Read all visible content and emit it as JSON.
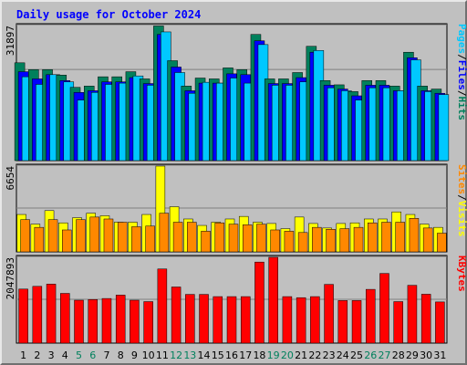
{
  "title": "Daily usage for October 2024",
  "colors": {
    "hits": "#00805c",
    "files": "#0000ff",
    "pages": "#00c8ff",
    "visits": "#ffff00",
    "sites": "#ff8800",
    "kbytes": "#ff0000",
    "weekend_label": "#00805c",
    "title": "#0000ff"
  },
  "chart_data": [
    {
      "type": "bar",
      "panel": "top",
      "categories": [
        "1",
        "2",
        "3",
        "4",
        "5",
        "6",
        "7",
        "8",
        "9",
        "10",
        "11",
        "12",
        "13",
        "14",
        "15",
        "16",
        "17",
        "18",
        "19",
        "20",
        "21",
        "22",
        "23",
        "24",
        "25",
        "26",
        "27",
        "28",
        "29",
        "30",
        "31"
      ],
      "y_label": "31897",
      "ylim": [
        0,
        31897
      ],
      "legend": [
        {
          "label": "Pages",
          "color": "#00c8ff"
        },
        {
          "label": "/",
          "color": "#000000"
        },
        {
          "label": "Files",
          "color": "#0000ff"
        },
        {
          "label": "/",
          "color": "#000000"
        },
        {
          "label": "Hits",
          "color": "#00805c"
        }
      ],
      "series": [
        {
          "name": "Hits",
          "color": "#00805c",
          "values": [
            23100,
            21500,
            21500,
            20200,
            17300,
            17600,
            19800,
            19800,
            21000,
            19300,
            31800,
            23600,
            17600,
            19500,
            19300,
            21900,
            21500,
            29800,
            19300,
            19300,
            20800,
            27000,
            18900,
            17900,
            16300,
            18900,
            18900,
            17600,
            25600,
            17600,
            16900
          ]
        },
        {
          "name": "Files",
          "color": "#0000ff",
          "values": [
            21000,
            19300,
            20300,
            18900,
            16100,
            16500,
            18600,
            18600,
            19600,
            18200,
            29800,
            22100,
            16500,
            18300,
            18300,
            20500,
            20300,
            28300,
            18200,
            18200,
            19600,
            25600,
            17800,
            16900,
            15300,
            17800,
            17800,
            16500,
            24300,
            16500,
            15900
          ]
        },
        {
          "name": "Pages",
          "color": "#00c8ff",
          "values": [
            19800,
            18000,
            20300,
            18600,
            14300,
            16100,
            18000,
            18300,
            20000,
            17800,
            30400,
            20800,
            15900,
            18500,
            18300,
            19500,
            18300,
            27400,
            17800,
            17800,
            18600,
            26000,
            17200,
            16500,
            14300,
            17200,
            17200,
            16500,
            23800,
            16300,
            15600
          ]
        }
      ]
    },
    {
      "type": "bar",
      "panel": "middle",
      "categories": [
        "1",
        "2",
        "3",
        "4",
        "5",
        "6",
        "7",
        "8",
        "9",
        "10",
        "11",
        "12",
        "13",
        "14",
        "15",
        "16",
        "17",
        "18",
        "19",
        "20",
        "21",
        "22",
        "23",
        "24",
        "25",
        "26",
        "27",
        "28",
        "29",
        "30",
        "31"
      ],
      "y_label": "6654",
      "ylim": [
        0,
        6654
      ],
      "legend": [
        {
          "label": "Sites",
          "color": "#ff8800"
        },
        {
          "label": "/",
          "color": "#000000"
        },
        {
          "label": "Visits",
          "color": "#ffff00"
        }
      ],
      "series": [
        {
          "name": "Visits",
          "color": "#ffff00",
          "values": [
            2900,
            2150,
            3200,
            2250,
            2650,
            3000,
            2800,
            2300,
            2300,
            2900,
            6654,
            3500,
            2550,
            2050,
            2300,
            2550,
            2750,
            2300,
            2200,
            1800,
            2700,
            2200,
            1850,
            2200,
            2250,
            2550,
            2550,
            3100,
            2900,
            2150,
            1900
          ]
        },
        {
          "name": "Sites",
          "color": "#ff8800",
          "values": [
            2500,
            1900,
            2500,
            1700,
            2500,
            2700,
            2550,
            2300,
            1950,
            2000,
            3000,
            2300,
            2300,
            1600,
            2250,
            2150,
            2100,
            2150,
            1700,
            1600,
            1500,
            1900,
            1750,
            1800,
            1900,
            2250,
            2300,
            2300,
            2600,
            1850,
            1450
          ]
        }
      ]
    },
    {
      "type": "bar",
      "panel": "bottom",
      "categories": [
        "1",
        "2",
        "3",
        "4",
        "5",
        "6",
        "7",
        "8",
        "9",
        "10",
        "11",
        "12",
        "13",
        "14",
        "15",
        "16",
        "17",
        "18",
        "19",
        "20",
        "21",
        "22",
        "23",
        "24",
        "25",
        "26",
        "27",
        "28",
        "29",
        "30",
        "31"
      ],
      "weekend_days": [
        "5",
        "6",
        "12",
        "13",
        "19",
        "20",
        "26",
        "27"
      ],
      "y_label": "2047893",
      "ylim": [
        0,
        2047893
      ],
      "legend": [
        {
          "label": "KBytes",
          "color": "#ff0000"
        }
      ],
      "series": [
        {
          "name": "KBytes",
          "color": "#ff0000",
          "values": [
            1290000,
            1355000,
            1408000,
            1187000,
            1024000,
            1040000,
            1065000,
            1146000,
            1024000,
            991000,
            1770000,
            1340000,
            1163000,
            1163000,
            1110000,
            1110000,
            1110000,
            1935000,
            2047893,
            1110000,
            1085000,
            1110000,
            1402000,
            1016000,
            1016000,
            1283000,
            1663000,
            991000,
            1380000,
            1167000,
            983000
          ]
        }
      ]
    }
  ]
}
